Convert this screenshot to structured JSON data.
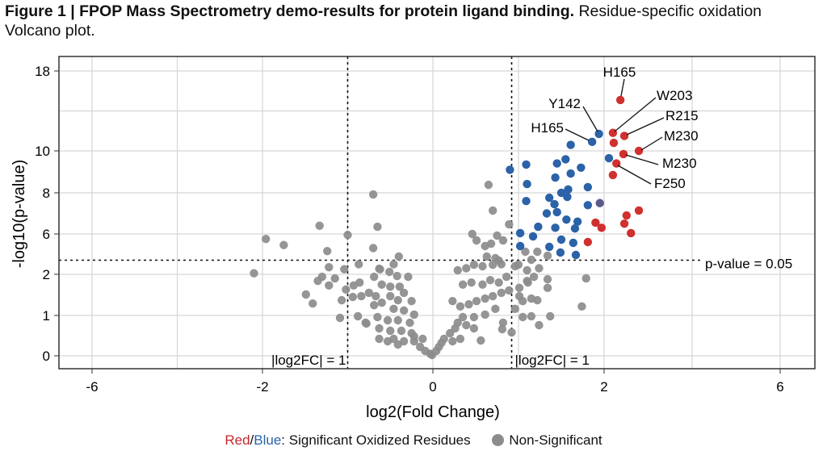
{
  "chart_data": {
    "type": "scatter",
    "title": "Figure 1 | FPOP Mass Spectrometry demo-results for protein ligand binding.",
    "subtitle": "Residue-specific oxidation Volcano plot.",
    "xlabel": "log2(Fold Change)",
    "ylabel": "-log10(p-value)",
    "x_ticks": [
      -6,
      -2,
      0,
      2,
      6
    ],
    "y_ticks": [
      0,
      1,
      2,
      6,
      8,
      10,
      18
    ],
    "xlim": [
      -6.8,
      6.8
    ],
    "ylim": [
      -0.3,
      19.5
    ],
    "grid": true,
    "thresholds": {
      "p_line": {
        "y": 3.4,
        "label": "p-value = 0.05"
      },
      "fc_lines": [
        {
          "x": -1.0,
          "label": "|log2FC| = 1"
        },
        {
          "x": 0.92,
          "label": "|log2FC| = 1"
        }
      ]
    },
    "colors": {
      "red": "#d0302f",
      "blue": "#2b62a8",
      "purple": "#5b5a8a",
      "gray": "#8c8c8c"
    },
    "legend": {
      "red_word": "Red",
      "slash": "/",
      "blue_word": "Blue",
      "sig_text": ": Significant Oxidized Residues",
      "nonsig_text": "Non-Significant",
      "placement": "bottom"
    },
    "series": [
      {
        "color_key": "red",
        "points": [
          {
            "x": 2.37,
            "y": 15.1,
            "label": "H165"
          },
          {
            "x": 2.2,
            "y": 11.8,
            "label": "W203"
          },
          {
            "x": 2.46,
            "y": 11.5,
            "label": "R215"
          },
          {
            "x": 2.22,
            "y": 10.8
          },
          {
            "x": 2.79,
            "y": 10.0,
            "label": "M230"
          },
          {
            "x": 2.44,
            "y": 9.85,
            "label": "M230"
          },
          {
            "x": 2.28,
            "y": 9.4,
            "label": "F250"
          },
          {
            "x": 2.2,
            "y": 8.85
          },
          {
            "x": 2.79,
            "y": 7.14
          },
          {
            "x": 2.51,
            "y": 6.9
          },
          {
            "x": 1.9,
            "y": 6.55
          },
          {
            "x": 1.97,
            "y": 6.3
          },
          {
            "x": 2.46,
            "y": 6.5
          },
          {
            "x": 2.61,
            "y": 6.04
          },
          {
            "x": 1.81,
            "y": 5.2
          }
        ]
      },
      {
        "color_key": "blue",
        "points": [
          {
            "x": 1.94,
            "y": 11.7,
            "label": "Y142"
          },
          {
            "x": 1.86,
            "y": 10.9,
            "label": "H165"
          },
          {
            "x": 1.61,
            "y": 10.6
          },
          {
            "x": 2.11,
            "y": 9.65
          },
          {
            "x": 0.9,
            "y": 9.1
          },
          {
            "x": 1.09,
            "y": 9.35
          },
          {
            "x": 1.45,
            "y": 9.4
          },
          {
            "x": 1.55,
            "y": 9.6
          },
          {
            "x": 1.73,
            "y": 9.2
          },
          {
            "x": 1.43,
            "y": 8.73
          },
          {
            "x": 1.61,
            "y": 8.92
          },
          {
            "x": 1.1,
            "y": 8.42
          },
          {
            "x": 1.81,
            "y": 8.27
          },
          {
            "x": 1.5,
            "y": 8.0
          },
          {
            "x": 1.58,
            "y": 8.16
          },
          {
            "x": 1.57,
            "y": 7.8
          },
          {
            "x": 1.09,
            "y": 7.6
          },
          {
            "x": 1.36,
            "y": 7.76
          },
          {
            "x": 1.42,
            "y": 7.45
          },
          {
            "x": 1.81,
            "y": 7.4
          },
          {
            "x": 1.33,
            "y": 7.0
          },
          {
            "x": 1.45,
            "y": 7.06
          },
          {
            "x": 1.56,
            "y": 6.7
          },
          {
            "x": 1.69,
            "y": 6.6
          },
          {
            "x": 1.23,
            "y": 6.35
          },
          {
            "x": 1.66,
            "y": 6.27
          },
          {
            "x": 1.43,
            "y": 6.3
          },
          {
            "x": 1.02,
            "y": 6.04
          },
          {
            "x": 1.17,
            "y": 5.76
          },
          {
            "x": 1.5,
            "y": 5.44
          },
          {
            "x": 1.64,
            "y": 5.12
          },
          {
            "x": 1.02,
            "y": 4.8
          },
          {
            "x": 1.36,
            "y": 4.72
          },
          {
            "x": 1.49,
            "y": 4.16
          },
          {
            "x": 1.67,
            "y": 3.92
          }
        ]
      },
      {
        "color_key": "purple",
        "points": [
          {
            "x": 1.95,
            "y": 7.5
          }
        ]
      },
      {
        "color_key": "gray",
        "points": [
          [
            -0.7,
            7.92
          ],
          [
            -1.33,
            6.4
          ],
          [
            -0.65,
            6.35
          ],
          [
            -1.96,
            5.5
          ],
          [
            -1.75,
            4.9
          ],
          [
            -1.0,
            5.9
          ],
          [
            -1.24,
            4.3
          ],
          [
            -0.7,
            4.6
          ],
          [
            -2.2,
            2.1
          ],
          [
            -1.22,
            2.7
          ],
          [
            -1.04,
            2.5
          ],
          [
            -0.87,
            3.0
          ],
          [
            -1.3,
            1.94
          ],
          [
            -1.35,
            1.84
          ],
          [
            -1.15,
            1.9
          ],
          [
            -1.22,
            1.73
          ],
          [
            -1.02,
            1.63
          ],
          [
            -1.49,
            1.51
          ],
          [
            -1.41,
            1.29
          ],
          [
            -1.07,
            1.37
          ],
          [
            -1.09,
            0.94
          ],
          [
            -0.93,
            1.73
          ],
          [
            -0.86,
            1.8
          ],
          [
            -0.84,
            1.47
          ],
          [
            -0.75,
            1.55
          ],
          [
            -0.67,
            1.47
          ],
          [
            -0.94,
            1.45
          ],
          [
            -0.88,
            0.98
          ],
          [
            -0.78,
            0.8
          ],
          [
            -0.63,
            2.55
          ],
          [
            -0.69,
            1.94
          ],
          [
            -0.4,
            3.76
          ],
          [
            -0.46,
            3.0
          ],
          [
            -0.62,
            2.5
          ],
          [
            -0.51,
            2.24
          ],
          [
            -0.42,
            1.96
          ],
          [
            -0.29,
            1.94
          ],
          [
            -0.6,
            1.75
          ],
          [
            -0.5,
            1.7
          ],
          [
            -0.39,
            1.7
          ],
          [
            -0.34,
            1.55
          ],
          [
            -0.5,
            1.47
          ],
          [
            -0.41,
            1.37
          ],
          [
            -0.25,
            1.35
          ],
          [
            -0.6,
            1.31
          ],
          [
            -0.69,
            1.25
          ],
          [
            -0.46,
            1.16
          ],
          [
            -0.34,
            1.12
          ],
          [
            -0.22,
            1.02
          ],
          [
            -0.79,
            0.82
          ],
          [
            -0.65,
            0.96
          ],
          [
            -0.53,
            0.88
          ],
          [
            -0.41,
            0.88
          ],
          [
            -0.27,
            0.82
          ],
          [
            -0.63,
            0.68
          ],
          [
            -0.5,
            0.62
          ],
          [
            -0.37,
            0.62
          ],
          [
            -0.25,
            0.56
          ],
          [
            -0.63,
            0.42
          ],
          [
            -0.46,
            0.42
          ],
          [
            -0.34,
            0.36
          ],
          [
            -0.22,
            0.36
          ],
          [
            -0.15,
            0.22
          ],
          [
            -0.09,
            0.12
          ],
          [
            -0.01,
            0.02
          ],
          [
            -0.03,
            0.05
          ],
          [
            -0.41,
            0.28
          ],
          [
            -0.22,
            0.48
          ],
          [
            -0.12,
            0.42
          ],
          [
            -0.53,
            0.36
          ],
          [
            0.07,
            0.22
          ],
          [
            0.04,
            0.12
          ],
          [
            0.13,
            0.42
          ],
          [
            0.2,
            0.56
          ],
          [
            0.26,
            0.68
          ],
          [
            0.1,
            0.32
          ],
          [
            0.23,
            0.36
          ],
          [
            0.32,
            0.42
          ],
          [
            0.29,
            0.82
          ],
          [
            0.39,
            0.76
          ],
          [
            0.48,
            0.68
          ],
          [
            0.56,
            0.38
          ],
          [
            0.35,
            0.96
          ],
          [
            0.48,
            0.96
          ],
          [
            0.61,
            1.02
          ],
          [
            0.73,
            1.16
          ],
          [
            0.82,
            0.82
          ],
          [
            0.81,
            0.66
          ],
          [
            0.92,
            0.58
          ],
          [
            0.23,
            1.35
          ],
          [
            0.32,
            1.22
          ],
          [
            0.42,
            1.27
          ],
          [
            0.51,
            1.35
          ],
          [
            0.61,
            1.41
          ],
          [
            0.7,
            1.47
          ],
          [
            0.8,
            1.55
          ],
          [
            0.89,
            1.61
          ],
          [
            1.05,
            1.35
          ],
          [
            1.05,
            0.96
          ],
          [
            0.35,
            1.75
          ],
          [
            0.45,
            1.8
          ],
          [
            0.58,
            1.75
          ],
          [
            0.67,
            1.86
          ],
          [
            0.77,
            1.8
          ],
          [
            0.86,
            1.94
          ],
          [
            0.29,
            2.4
          ],
          [
            0.39,
            2.6
          ],
          [
            0.48,
            2.95
          ],
          [
            0.58,
            2.8
          ],
          [
            0.7,
            2.95
          ],
          [
            0.8,
            3.0
          ],
          [
            0.96,
            2.8
          ],
          [
            1.1,
            2.4
          ],
          [
            1.11,
            1.8
          ],
          [
            0.46,
            6.0
          ],
          [
            0.51,
            5.36
          ],
          [
            0.61,
            4.8
          ],
          [
            0.68,
            5.04
          ],
          [
            0.75,
            5.84
          ],
          [
            0.82,
            5.36
          ],
          [
            0.63,
            3.76
          ],
          [
            0.73,
            3.6
          ],
          [
            0.89,
            6.47
          ],
          [
            0.7,
            7.14
          ],
          [
            0.65,
            8.38
          ],
          [
            0.77,
            3.36
          ],
          [
            1.79,
            1.9
          ],
          [
            1.74,
            1.22
          ],
          [
            1.34,
            1.88
          ],
          [
            1.34,
            1.67
          ],
          [
            1.37,
            0.98
          ],
          [
            1.24,
            0.76
          ],
          [
            1.15,
            0.98
          ],
          [
            1.22,
            1.37
          ],
          [
            1.15,
            1.41
          ],
          [
            1.18,
            1.94
          ],
          [
            1.24,
            2.6
          ],
          [
            1.15,
            3.44
          ],
          [
            1.22,
            4.24
          ],
          [
            1.34,
            3.84
          ],
          [
            0.96,
            1.16
          ],
          [
            1.0,
            2.96
          ],
          [
            1.1,
            1.84
          ],
          [
            1.01,
            1.67
          ],
          [
            1.01,
            1.47
          ],
          [
            1.08,
            4.24
          ]
        ]
      }
    ]
  }
}
